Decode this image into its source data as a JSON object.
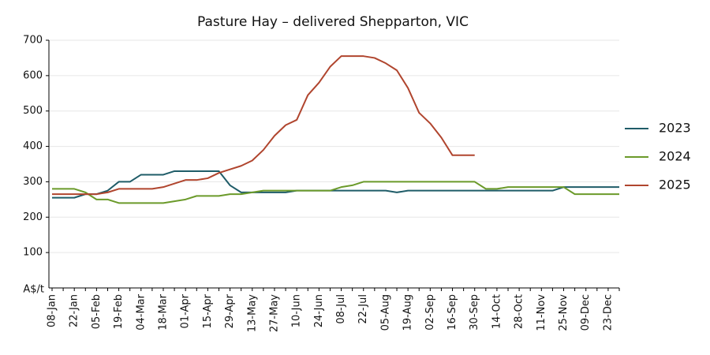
{
  "chart_data": {
    "type": "line",
    "title": "Pasture Hay – delivered Shepparton, VIC",
    "y_label": "A$/t",
    "categories": [
      "08-Jan",
      null,
      "22-Jan",
      null,
      "05-Feb",
      null,
      "19-Feb",
      null,
      "04-Mar",
      null,
      "18-Mar",
      null,
      "01-Apr",
      null,
      "15-Apr",
      null,
      "29-Apr",
      null,
      "13-May",
      null,
      "27-May",
      null,
      "10-Jun",
      null,
      "24-Jun",
      null,
      "08-Jul",
      null,
      "22-Jul",
      null,
      "05-Aug",
      null,
      "19-Aug",
      null,
      "02-Sep",
      null,
      "16-Sep",
      null,
      "30-Sep",
      null,
      "14-Oct",
      null,
      "28-Oct",
      null,
      "11-Nov",
      null,
      "25-Nov",
      null,
      "09-Dec",
      null,
      "23-Dec",
      null
    ],
    "series": [
      {
        "name": "2023",
        "color": "#1f5c68",
        "values": [
          255,
          255,
          255,
          265,
          265,
          275,
          300,
          300,
          320,
          320,
          320,
          330,
          330,
          330,
          330,
          330,
          290,
          270,
          270,
          270,
          270,
          270,
          275,
          275,
          275,
          275,
          275,
          275,
          275,
          275,
          275,
          270,
          275,
          275,
          275,
          275,
          275,
          275,
          275,
          275,
          275,
          275,
          275,
          275,
          275,
          275,
          285,
          285,
          285,
          285,
          285,
          285
        ]
      },
      {
        "name": "2024",
        "color": "#6b9a2a",
        "values": [
          280,
          280,
          280,
          270,
          250,
          250,
          240,
          240,
          240,
          240,
          240,
          245,
          250,
          260,
          260,
          260,
          265,
          265,
          270,
          275,
          275,
          275,
          275,
          275,
          275,
          275,
          285,
          290,
          300,
          300,
          300,
          300,
          300,
          300,
          300,
          300,
          300,
          300,
          300,
          280,
          280,
          285,
          285,
          285,
          285,
          285,
          285,
          265,
          265,
          265,
          265,
          265
        ]
      },
      {
        "name": "2025",
        "color": "#b0452e",
        "values": [
          265,
          265,
          265,
          265,
          265,
          270,
          280,
          280,
          280,
          280,
          285,
          295,
          305,
          305,
          310,
          325,
          335,
          345,
          360,
          390,
          430,
          460,
          475,
          545,
          580,
          625,
          655,
          655,
          655,
          650,
          635,
          615,
          565,
          495,
          465,
          425,
          375,
          375,
          375,
          null,
          null,
          null,
          null,
          null,
          null,
          null,
          null,
          null,
          null,
          null,
          null,
          null
        ]
      }
    ],
    "ylim": [
      0,
      700
    ],
    "yticks": [
      100,
      200,
      300,
      400,
      500,
      600,
      700
    ],
    "grid": true,
    "legend": "right"
  }
}
